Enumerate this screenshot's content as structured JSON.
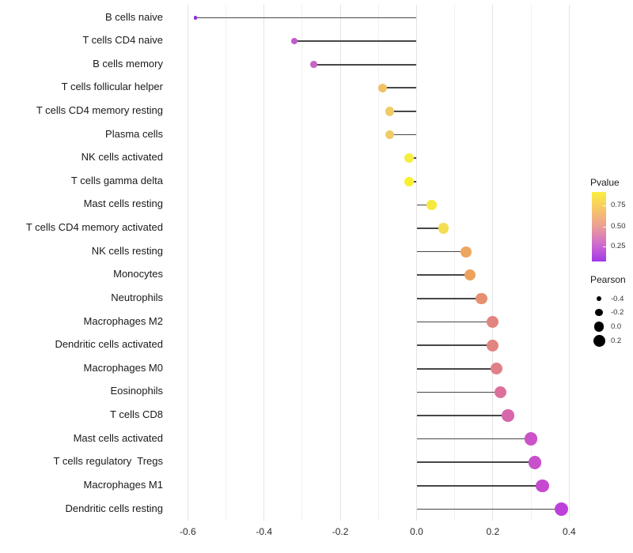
{
  "chart_data": {
    "type": "lollipop",
    "orientation": "horizontal",
    "title": "",
    "xlabel": "",
    "ylabel": "",
    "xlim": [
      -0.63,
      0.43
    ],
    "baseline": 0,
    "grid": "vertical gridlines every 0.1, white background",
    "x_ticks": [
      -0.6,
      -0.4,
      -0.2,
      0.0,
      0.2,
      0.4
    ],
    "x_tick_labels": [
      "-0.6",
      "-0.4",
      "-0.2",
      "0.0",
      "0.2",
      "0.4"
    ],
    "categories": [
      "B cells naive",
      "T cells CD4 naive",
      "B cells memory",
      "T cells follicular helper",
      "T cells CD4 memory resting",
      "Plasma cells",
      "NK cells activated",
      "T cells gamma delta",
      "Mast cells resting",
      "T cells CD4 memory activated",
      "NK cells resting",
      "Monocytes",
      "Neutrophils",
      "Macrophages M2",
      "Dendritic cells activated",
      "Macrophages M0",
      "Eosinophils",
      "T cells CD8",
      "Mast cells activated",
      "T cells regulatory  Tregs",
      "Macrophages M1",
      "Dendritic cells resting"
    ],
    "series": [
      {
        "name": "Pearson",
        "values": [
          -0.58,
          -0.32,
          -0.27,
          -0.09,
          -0.07,
          -0.07,
          -0.02,
          -0.02,
          0.04,
          0.07,
          0.13,
          0.14,
          0.17,
          0.2,
          0.2,
          0.21,
          0.22,
          0.24,
          0.3,
          0.31,
          0.33,
          0.38
        ]
      }
    ],
    "point_colors": [
      "#8b2fd8",
      "#c05bc9",
      "#c765c5",
      "#efc365",
      "#f0cc67",
      "#f0cc67",
      "#f6ee3e",
      "#f8ef2e",
      "#f6e93e",
      "#f3de51",
      "#eda660",
      "#eca25d",
      "#e69071",
      "#e28480",
      "#e28480",
      "#e08088",
      "#dc709b",
      "#d766ac",
      "#cb53c7",
      "#c950cb",
      "#c649d0",
      "#bc40d9"
    ],
    "stem_color": "#474747",
    "legends": {
      "pvalue": {
        "title": "Pvalue",
        "tick_labels": [
          "0.75",
          "0.50",
          "0.25"
        ],
        "gradient_top_to_bottom": [
          "#f9ef3f",
          "#f7c569",
          "#eb9e97",
          "#cf6cce",
          "#a139e8"
        ]
      },
      "pearson": {
        "title": "Pearson",
        "tick_labels": [
          "-0.4",
          "-0.2",
          "0.0",
          "0.2"
        ],
        "tick_values": [
          -0.4,
          -0.2,
          0.0,
          0.2
        ]
      }
    }
  }
}
